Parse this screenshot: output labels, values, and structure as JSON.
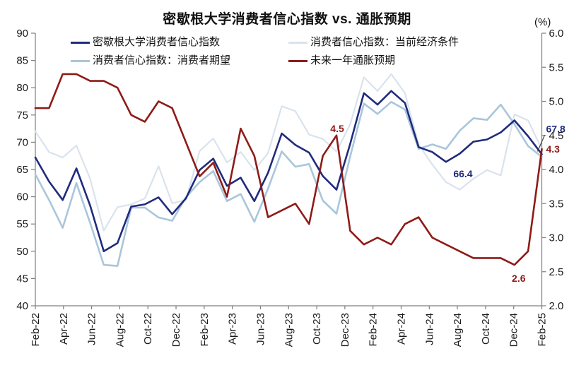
{
  "title": "密歇根大学消费者信心指数 vs. 通胀预期",
  "right_axis_unit": "(%)",
  "legend": [
    {
      "id": "sentiment",
      "label": "密歇根大学消费者信心指数"
    },
    {
      "id": "conditions",
      "label": "消费者信心指数：当前经济条件"
    },
    {
      "id": "expectations",
      "label": "消费者信心指数：消费者期望"
    },
    {
      "id": "inflation",
      "label": "未来一年通胀预期"
    }
  ],
  "colors": {
    "sentiment": "#1F2B7D",
    "conditions": "#D9E3ED",
    "expectations": "#A9C6DB",
    "inflation": "#8E1B17",
    "axis": "#7F7F7F",
    "tick_text": "#1A1A1A"
  },
  "chart_data": {
    "type": "line",
    "title": "密歇根大学消费者信心指数 vs. 通胀预期",
    "grid": false,
    "legend_position": "top-inside",
    "left_axis": {
      "min": 40,
      "max": 90,
      "step": 5
    },
    "right_axis": {
      "min": 2.0,
      "max": 6.0,
      "step": 0.5,
      "unit": "(%)"
    },
    "x_tick_labels": [
      "Feb-22",
      "Apr-22",
      "Jun-22",
      "Aug-22",
      "Oct-22",
      "Dec-22",
      "Feb-23",
      "Apr-23",
      "Jun-23",
      "Aug-23",
      "Oct-23",
      "Dec-23",
      "Feb-24",
      "Apr-24",
      "Jun-24",
      "Aug-24",
      "Oct-24",
      "Dec-24",
      "Feb-25"
    ],
    "x_months": [
      "Jan-22",
      "Feb-22",
      "Mar-22",
      "Apr-22",
      "May-22",
      "Jun-22",
      "Jul-22",
      "Aug-22",
      "Sep-22",
      "Oct-22",
      "Nov-22",
      "Dec-22",
      "Jan-23",
      "Feb-23",
      "Mar-23",
      "Apr-23",
      "May-23",
      "Jun-23",
      "Jul-23",
      "Aug-23",
      "Sep-23",
      "Oct-23",
      "Nov-23",
      "Dec-23",
      "Jan-24",
      "Feb-24",
      "Mar-24",
      "Apr-24",
      "May-24",
      "Jun-24",
      "Jul-24",
      "Aug-24",
      "Sep-24",
      "Oct-24",
      "Nov-24",
      "Dec-24",
      "Jan-25",
      "Feb-25"
    ],
    "series": [
      {
        "id": "conditions",
        "name": "消费者信心指数：当前经济条件",
        "axis": "left",
        "color": "#D9E3ED",
        "width": 2.2,
        "values": [
          72.0,
          68.2,
          67.2,
          69.4,
          63.3,
          53.8,
          58.1,
          58.6,
          59.7,
          65.6,
          58.8,
          59.4,
          68.4,
          70.7,
          66.3,
          68.2,
          64.9,
          68.0,
          76.6,
          75.7,
          71.4,
          70.6,
          68.3,
          73.3,
          81.9,
          79.4,
          82.5,
          79.0,
          69.6,
          65.9,
          62.7,
          61.3,
          63.3,
          64.9,
          63.9,
          75.1,
          74.0,
          68.7
        ]
      },
      {
        "id": "expectations",
        "name": "消费者信心指数：消费者期望",
        "axis": "left",
        "color": "#A9C6DB",
        "width": 2.6,
        "values": [
          64.1,
          59.4,
          54.3,
          62.5,
          55.2,
          47.5,
          47.3,
          58.0,
          58.0,
          56.2,
          55.6,
          59.9,
          62.7,
          64.7,
          59.2,
          60.5,
          55.4,
          61.5,
          68.3,
          65.5,
          66.0,
          59.3,
          56.9,
          67.4,
          77.1,
          75.2,
          77.4,
          76.0,
          68.8,
          69.6,
          68.8,
          72.1,
          74.4,
          74.1,
          76.9,
          73.3,
          69.3,
          67.3
        ]
      },
      {
        "id": "sentiment",
        "name": "密歇根大学消费者信心指数",
        "axis": "left",
        "color": "#1F2B7D",
        "width": 2.6,
        "values": [
          67.2,
          62.8,
          59.4,
          65.2,
          58.4,
          50.0,
          51.5,
          58.2,
          58.6,
          59.9,
          56.8,
          59.7,
          64.9,
          67.0,
          62.0,
          63.5,
          59.2,
          64.4,
          71.6,
          69.5,
          68.1,
          63.8,
          61.3,
          69.7,
          79.0,
          76.9,
          79.4,
          77.2,
          69.1,
          68.2,
          66.4,
          67.9,
          70.1,
          70.5,
          71.8,
          74.0,
          71.1,
          67.8
        ]
      },
      {
        "id": "inflation",
        "name": "未来一年通胀预期",
        "axis": "right",
        "color": "#8E1B17",
        "width": 2.6,
        "values": [
          4.9,
          4.9,
          5.4,
          5.4,
          5.3,
          5.3,
          5.2,
          4.8,
          4.7,
          5.0,
          4.9,
          4.4,
          3.9,
          4.1,
          3.6,
          4.6,
          4.2,
          3.3,
          3.4,
          3.5,
          3.2,
          4.2,
          4.5,
          3.1,
          2.9,
          3.0,
          2.9,
          3.2,
          3.3,
          3.0,
          2.9,
          2.8,
          2.7,
          2.7,
          2.7,
          2.6,
          2.8,
          4.3
        ]
      }
    ],
    "annotations": [
      {
        "text": "4.5",
        "color": "#8E1B17",
        "month": "Nov-23",
        "value": 4.5,
        "axis": "right",
        "placement": "above"
      },
      {
        "text": "2.6",
        "color": "#8E1B17",
        "month": "Dec-24",
        "value": 2.6,
        "axis": "right",
        "placement": "below"
      },
      {
        "text": "66.4",
        "color": "#1F2B7D",
        "month": "Jul-24",
        "value": 66.4,
        "axis": "left",
        "placement": "below-right"
      },
      {
        "text": "67.8",
        "color": "#1F2B7D",
        "month": "Feb-25",
        "value": 67.8,
        "axis": "left",
        "placement": "right-upper",
        "leader": true
      },
      {
        "text": "4.3",
        "color": "#8E1B17",
        "month": "Feb-25",
        "value": 4.3,
        "axis": "right",
        "placement": "right-lower"
      }
    ]
  }
}
